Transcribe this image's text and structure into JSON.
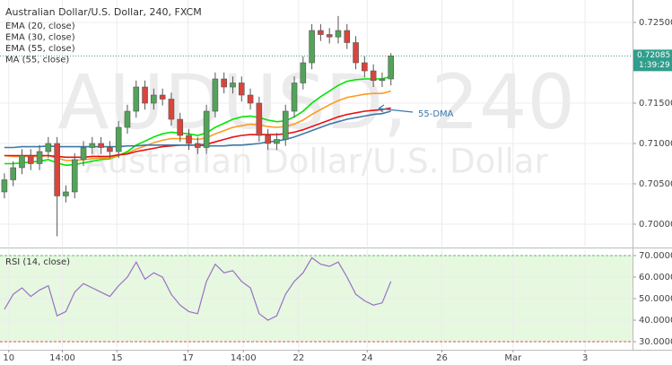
{
  "chart_data": [
    {
      "type": "candlestick",
      "title": "Australian Dollar/U.S. Dollar, 240, FXCM",
      "watermark": "AUDUSD, 240",
      "watermark_subtitle": "Australian Dollar/U.S. Dollar",
      "annotation": "55-DMA",
      "current_price": 0.72085,
      "timer": "1:39:29",
      "up_color": "#53a35a",
      "down_color": "#d9453c",
      "price_line_color": "#2f9e8c",
      "open": [
        0.704,
        0.7055,
        0.707,
        0.7085,
        0.7075,
        0.709,
        0.71,
        0.7035,
        0.704,
        0.708,
        0.7095,
        0.71,
        0.7095,
        0.709,
        0.712,
        0.714,
        0.717,
        0.715,
        0.716,
        0.7155,
        0.713,
        0.711,
        0.71,
        0.7095,
        0.714,
        0.718,
        0.717,
        0.7175,
        0.716,
        0.715,
        0.711,
        0.71,
        0.7105,
        0.714,
        0.7175,
        0.72,
        0.724,
        0.7235,
        0.7232,
        0.724,
        0.7225,
        0.72,
        0.719,
        0.7178,
        0.718
      ],
      "high": [
        0.7063,
        0.7078,
        0.7093,
        0.7093,
        0.7098,
        0.7108,
        0.7108,
        0.7048,
        0.7088,
        0.7103,
        0.7108,
        0.7108,
        0.7103,
        0.7128,
        0.7148,
        0.7178,
        0.7178,
        0.7168,
        0.7168,
        0.7163,
        0.7138,
        0.7118,
        0.7108,
        0.7148,
        0.7188,
        0.7188,
        0.7183,
        0.7183,
        0.7168,
        0.7158,
        0.7118,
        0.7113,
        0.7148,
        0.7183,
        0.7208,
        0.7248,
        0.7248,
        0.7243,
        0.7258,
        0.7248,
        0.7233,
        0.7208,
        0.7198,
        0.7188,
        0.7212
      ],
      "low": [
        0.7032,
        0.7047,
        0.7062,
        0.7067,
        0.7067,
        0.7082,
        0.6985,
        0.7027,
        0.7032,
        0.7072,
        0.7087,
        0.7087,
        0.7082,
        0.7082,
        0.7112,
        0.7132,
        0.7142,
        0.7142,
        0.7147,
        0.7122,
        0.7102,
        0.7092,
        0.7087,
        0.7087,
        0.7132,
        0.7162,
        0.7162,
        0.7152,
        0.7142,
        0.7102,
        0.7092,
        0.7092,
        0.7097,
        0.7132,
        0.7167,
        0.7192,
        0.7227,
        0.7224,
        0.7224,
        0.7217,
        0.7192,
        0.7182,
        0.717,
        0.717,
        0.7172
      ],
      "close": [
        0.7055,
        0.707,
        0.7085,
        0.7075,
        0.709,
        0.71,
        0.7035,
        0.704,
        0.708,
        0.7095,
        0.71,
        0.7095,
        0.709,
        0.712,
        0.714,
        0.717,
        0.715,
        0.716,
        0.7155,
        0.713,
        0.711,
        0.71,
        0.7095,
        0.714,
        0.718,
        0.717,
        0.7175,
        0.716,
        0.715,
        0.711,
        0.71,
        0.7105,
        0.714,
        0.7175,
        0.72,
        0.724,
        0.7235,
        0.7232,
        0.724,
        0.7225,
        0.72,
        0.719,
        0.7178,
        0.718,
        0.72085
      ],
      "series": [
        {
          "name": "EMA (20, close)",
          "color": "#00e600",
          "values": [
            0.7075,
            0.7075,
            0.7076,
            0.7077,
            0.7078,
            0.708,
            0.7076,
            0.7073,
            0.7074,
            0.7076,
            0.7078,
            0.708,
            0.7081,
            0.7085,
            0.709,
            0.7098,
            0.7103,
            0.7108,
            0.7112,
            0.7114,
            0.7113,
            0.7112,
            0.711,
            0.7113,
            0.712,
            0.7125,
            0.713,
            0.7133,
            0.7134,
            0.7132,
            0.7129,
            0.7127,
            0.7128,
            0.7133,
            0.714,
            0.715,
            0.7158,
            0.7165,
            0.7172,
            0.7177,
            0.7179,
            0.718,
            0.718,
            0.718,
            0.7183
          ]
        },
        {
          "name": "EMA (30, close)",
          "color": "#ff9a1f",
          "values": [
            0.7085,
            0.7084,
            0.7084,
            0.7084,
            0.7084,
            0.7085,
            0.7082,
            0.7079,
            0.7079,
            0.708,
            0.7081,
            0.7082,
            0.7082,
            0.7085,
            0.7088,
            0.7093,
            0.7097,
            0.7101,
            0.7104,
            0.7106,
            0.7106,
            0.7106,
            0.7105,
            0.7107,
            0.7112,
            0.7116,
            0.712,
            0.7122,
            0.7124,
            0.7123,
            0.7121,
            0.712,
            0.7121,
            0.7124,
            0.7129,
            0.7136,
            0.7142,
            0.7148,
            0.7153,
            0.7157,
            0.7159,
            0.7161,
            0.7162,
            0.7162,
            0.7165
          ]
        },
        {
          "name": "EMA (55, close)",
          "color": "#e81010",
          "values": [
            0.7085,
            0.7085,
            0.7085,
            0.7085,
            0.7085,
            0.7085,
            0.7084,
            0.7083,
            0.7083,
            0.7083,
            0.7084,
            0.7084,
            0.7084,
            0.7086,
            0.7087,
            0.709,
            0.7092,
            0.7094,
            0.7096,
            0.7097,
            0.7098,
            0.7098,
            0.7098,
            0.7099,
            0.7102,
            0.7105,
            0.7108,
            0.711,
            0.7111,
            0.7111,
            0.7111,
            0.7111,
            0.7112,
            0.7114,
            0.7117,
            0.7121,
            0.7125,
            0.7129,
            0.7133,
            0.7136,
            0.7138,
            0.714,
            0.7141,
            0.7142,
            0.7144
          ]
        },
        {
          "name": "MA (55, close)",
          "color": "#3d78a8",
          "values": [
            0.7095,
            0.7095,
            0.7096,
            0.7096,
            0.7096,
            0.7097,
            0.7096,
            0.7096,
            0.7096,
            0.7096,
            0.7096,
            0.7096,
            0.7096,
            0.7096,
            0.7097,
            0.7097,
            0.7098,
            0.7098,
            0.7098,
            0.7098,
            0.7098,
            0.7098,
            0.7098,
            0.7097,
            0.7097,
            0.7097,
            0.7098,
            0.7098,
            0.7099,
            0.71,
            0.7102,
            0.7103,
            0.7105,
            0.7108,
            0.7112,
            0.7116,
            0.712,
            0.7124,
            0.7127,
            0.713,
            0.7132,
            0.7134,
            0.7136,
            0.7137,
            0.714
          ]
        }
      ],
      "xlim": [
        -0.5,
        71.5
      ],
      "xticks": [
        {
          "value": 0.5,
          "label": "10"
        },
        {
          "value": 6.6,
          "label": "14:00"
        },
        {
          "value": 12.8,
          "label": "15"
        },
        {
          "value": 20.9,
          "label": "17"
        },
        {
          "value": 27.2,
          "label": "14:00"
        },
        {
          "value": 33.5,
          "label": "22"
        },
        {
          "value": 41.3,
          "label": "24"
        },
        {
          "value": 49.8,
          "label": "26"
        },
        {
          "value": 57.9,
          "label": "Mar"
        },
        {
          "value": 66.1,
          "label": "3"
        }
      ],
      "ylim": [
        0.69722,
        0.72778
      ],
      "yticks": [
        {
          "value": 0.7,
          "label": "0.70000"
        },
        {
          "value": 0.705,
          "label": "0.70500"
        },
        {
          "value": 0.71,
          "label": "0.71000"
        },
        {
          "value": 0.715,
          "label": "0.71500"
        },
        {
          "value": 0.725,
          "label": "0.72500"
        }
      ],
      "grid": true
    },
    {
      "type": "line",
      "series": [
        {
          "name": "RSI (14, close)",
          "color": "#9a6fc4",
          "values": [
            45,
            52,
            55,
            51,
            54,
            56,
            42,
            44,
            53,
            57,
            55,
            53,
            51,
            56,
            60,
            67,
            59,
            62,
            60,
            52,
            47,
            44,
            43,
            58,
            66,
            62,
            63,
            58,
            55,
            43,
            40,
            42,
            52,
            58,
            62,
            69,
            66,
            65,
            67,
            60,
            52,
            49,
            47,
            48,
            58
          ]
        }
      ],
      "xlim": [
        -0.5,
        71.5
      ],
      "ylim": [
        27.1,
        72.9
      ],
      "yticks": [
        {
          "value": 30,
          "label": "30.0000"
        },
        {
          "value": 40,
          "label": "40.0000"
        },
        {
          "value": 50,
          "label": "50.0000"
        },
        {
          "value": 60,
          "label": "60.0000"
        },
        {
          "value": 70,
          "label": "70.0000"
        }
      ],
      "band_color": "#e6f8e0",
      "grid": true
    }
  ]
}
